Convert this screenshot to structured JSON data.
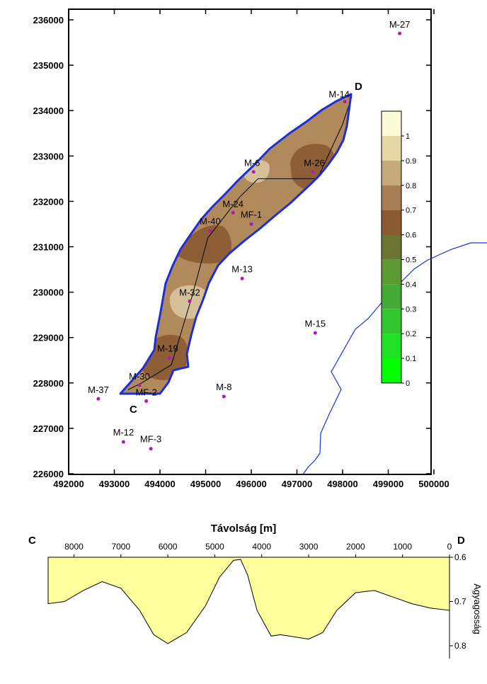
{
  "chart_data": [
    {
      "type": "contour-map",
      "y_axis_ticks": [
        "236000",
        "235000",
        "234000",
        "233000",
        "232000",
        "231000",
        "230000",
        "229000",
        "228000",
        "227000",
        "226000"
      ],
      "x_axis_ticks": [
        "492000",
        "493000",
        "494000",
        "495000",
        "496000",
        "497000",
        "498000",
        "499000",
        "500000"
      ],
      "xlim": [
        491950,
        500300
      ],
      "ylim": [
        225950,
        236250
      ],
      "section_labels": {
        "start": "C",
        "end": "D"
      },
      "section_line": [
        {
          "x": 493300,
          "y": 227850
        },
        {
          "x": 493600,
          "y": 228000
        },
        {
          "x": 494250,
          "y": 228400
        },
        {
          "x": 494700,
          "y": 229900
        },
        {
          "x": 495050,
          "y": 231200
        },
        {
          "x": 495750,
          "y": 232100
        },
        {
          "x": 496150,
          "y": 232500
        },
        {
          "x": 497450,
          "y": 232500
        },
        {
          "x": 498000,
          "y": 233700
        },
        {
          "x": 498200,
          "y": 234300
        }
      ],
      "wells": [
        {
          "name": "M-27",
          "x": 499250,
          "y": 235700
        },
        {
          "name": "M-14",
          "x": 498050,
          "y": 234200
        },
        {
          "name": "M-6",
          "x": 496050,
          "y": 232650
        },
        {
          "name": "M-26",
          "x": 497350,
          "y": 232650
        },
        {
          "name": "M-24",
          "x": 495600,
          "y": 231750
        },
        {
          "name": "MF-1",
          "x": 496000,
          "y": 231500
        },
        {
          "name": "M-40",
          "x": 495100,
          "y": 231350
        },
        {
          "name": "M-13",
          "x": 495800,
          "y": 230300
        },
        {
          "name": "M-32",
          "x": 494650,
          "y": 229800
        },
        {
          "name": "M-15",
          "x": 497400,
          "y": 229100
        },
        {
          "name": "M-19",
          "x": 494200,
          "y": 228550
        },
        {
          "name": "M-30",
          "x": 493550,
          "y": 227950
        },
        {
          "name": "MF-2",
          "x": 493700,
          "y": 227600
        },
        {
          "name": "M-8",
          "x": 495400,
          "y": 227700
        },
        {
          "name": "M-37",
          "x": 492650,
          "y": 227650
        },
        {
          "name": "M-12",
          "x": 493200,
          "y": 226700
        },
        {
          "name": "MF-3",
          "x": 493800,
          "y": 226550
        }
      ],
      "colorbar": {
        "ticks": [
          "1",
          "0.9",
          "0.8",
          "0.7",
          "0.6",
          "0.5",
          "0.4",
          "0.3",
          "0.2",
          "0.1",
          "0"
        ],
        "colors": [
          "#fdfbd7",
          "#e5d6a5",
          "#c7aa7b",
          "#a87e56",
          "#8c5a32",
          "#6d7534",
          "#5d9932",
          "#46ab35",
          "#33c72f",
          "#20e123",
          "#00ff00"
        ]
      },
      "fill_colors": {
        "base": "#b08a5a",
        "dark": "#8e5f36",
        "light": "#d6c09a",
        "outline": "#1c2ed8",
        "river": "#1c2ed8",
        "well": "#b01ab0"
      }
    },
    {
      "type": "area",
      "title": "Távolság [m]",
      "left_label": "C",
      "right_label": "D",
      "ylabel": "Agyagosság",
      "x_ticks": [
        "8000",
        "7000",
        "6000",
        "5000",
        "4000",
        "3000",
        "2000",
        "1000",
        "0"
      ],
      "y_ticks": [
        "0.6",
        "0.7",
        "0.8"
      ],
      "xlim": [
        8550,
        0
      ],
      "ylim": [
        0.6,
        0.82
      ],
      "x": [
        8550,
        8200,
        7800,
        7400,
        7000,
        6600,
        6300,
        6000,
        5600,
        5200,
        4900,
        4600,
        4450,
        4300,
        4100,
        3800,
        3600,
        3300,
        3000,
        2700,
        2400,
        2000,
        1600,
        1200,
        800,
        400,
        0
      ],
      "values": [
        0.705,
        0.7,
        0.675,
        0.655,
        0.67,
        0.72,
        0.775,
        0.795,
        0.77,
        0.71,
        0.645,
        0.607,
        0.605,
        0.64,
        0.72,
        0.778,
        0.775,
        0.78,
        0.785,
        0.77,
        0.72,
        0.68,
        0.675,
        0.69,
        0.705,
        0.715,
        0.72
      ],
      "fill": "#ffff9e"
    }
  ]
}
